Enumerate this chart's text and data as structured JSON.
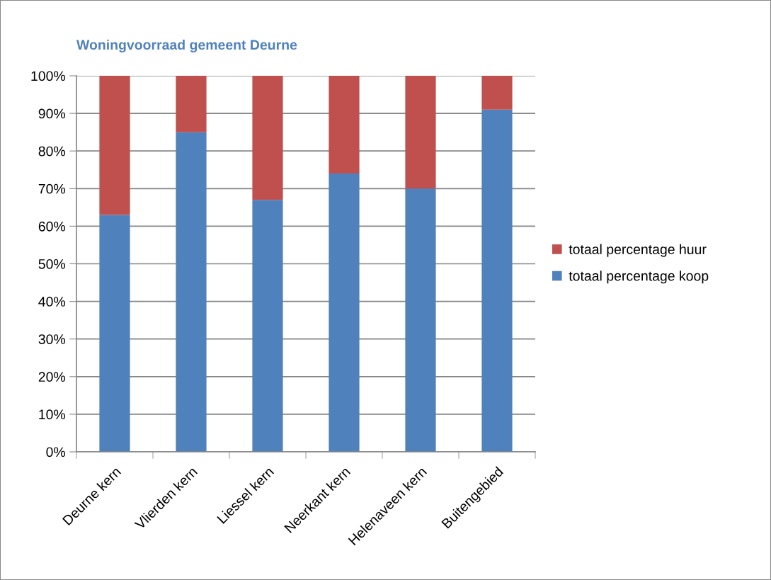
{
  "chart_data": {
    "type": "bar",
    "title": "Woningvoorraad gemeent Deurne",
    "stacked": true,
    "categories": [
      "Deurne kern",
      "Vlierden kern",
      "Liessel kern",
      "Neerkant kern",
      "Helenaveen kern",
      "Buitengebied"
    ],
    "series": [
      {
        "name": "totaal percentage koop",
        "color": "#4f81bd",
        "values": [
          63,
          85,
          67,
          74,
          70,
          91
        ]
      },
      {
        "name": "totaal percentage huur",
        "color": "#c0504d",
        "values": [
          37,
          15,
          33,
          26,
          30,
          9
        ]
      }
    ],
    "ylim": [
      0,
      100
    ],
    "yticks": [
      {
        "value": 0,
        "label": "0%"
      },
      {
        "value": 10,
        "label": "10%"
      },
      {
        "value": 20,
        "label": "20%"
      },
      {
        "value": 30,
        "label": "30%"
      },
      {
        "value": 40,
        "label": "40%"
      },
      {
        "value": 50,
        "label": "50%"
      },
      {
        "value": 60,
        "label": "60%"
      },
      {
        "value": 70,
        "label": "70%"
      },
      {
        "value": 80,
        "label": "80%"
      },
      {
        "value": 90,
        "label": "90%"
      },
      {
        "value": 100,
        "label": "100%"
      }
    ],
    "grid": "y",
    "legend": "right"
  }
}
